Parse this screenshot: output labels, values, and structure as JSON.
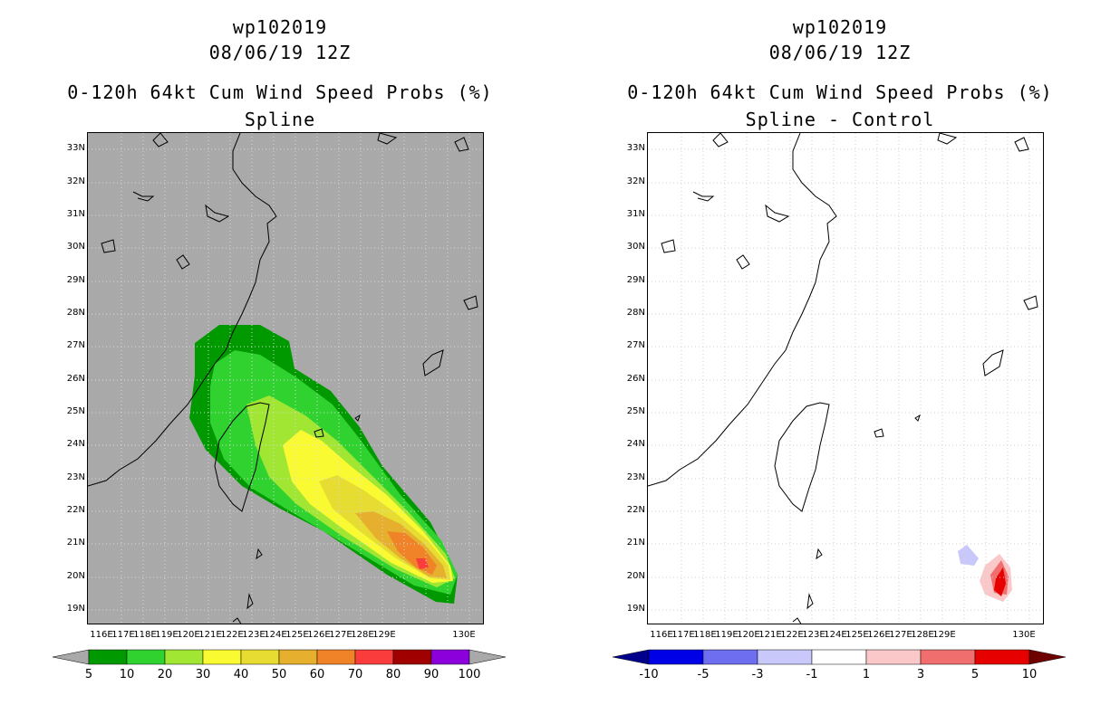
{
  "left": {
    "title_id": "wp102019",
    "title_date": "08/06/19 12Z",
    "title_main": "0-120h 64kt Cum Wind Speed Probs (%)",
    "title_sub": "Spline",
    "colorbar_labels": [
      "5",
      "10",
      "20",
      "30",
      "40",
      "50",
      "60",
      "70",
      "80",
      "90",
      "100"
    ],
    "colorbar_colors": [
      "#009a00",
      "#30d230",
      "#a0e632",
      "#fafa32",
      "#e6dc32",
      "#e6af2d",
      "#f08228",
      "#fa3c3c",
      "#a00000",
      "#8c00dc"
    ],
    "background_color": "#a9a9a9"
  },
  "right": {
    "title_id": "wp102019",
    "title_date": "08/06/19 12Z",
    "title_main": "0-120h 64kt Cum Wind Speed Probs (%)",
    "title_sub": "Spline - Control",
    "colorbar_labels": [
      "-10",
      "-5",
      "-3",
      "-1",
      "1",
      "3",
      "5",
      "10"
    ],
    "colorbar_colors": [
      "#0000e6",
      "#6e6ef0",
      "#c8c8fa",
      "#ffffff",
      "#fac8c8",
      "#f06e6e",
      "#e60000"
    ]
  },
  "lat_labels": [
    "33N",
    "32N",
    "31N",
    "30N",
    "29N",
    "28N",
    "27N",
    "26N",
    "25N",
    "24N",
    "23N",
    "22N",
    "21N",
    "20N",
    "19N"
  ],
  "lon_labels": [
    "116E",
    "117E",
    "118E",
    "119E",
    "120E",
    "121E",
    "122E",
    "123E",
    "124E",
    "125E",
    "126E",
    "127E",
    "128E",
    "129E",
    "130E"
  ]
}
